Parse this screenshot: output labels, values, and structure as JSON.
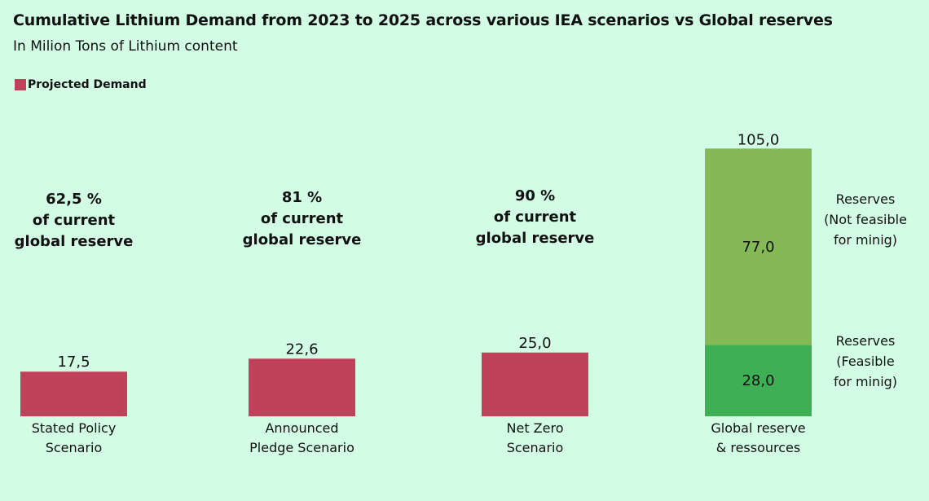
{
  "title": "Cumulative Lithium Demand from 2023 to 2025 across various IEA scenarios vs Global reserves",
  "subtitle": "In Milion Tons of Lithium content",
  "legend": {
    "label": "Projected Demand",
    "color": "#c0415a"
  },
  "colors": {
    "demand": "#c0415a",
    "feasible": "#3faf55",
    "not_feasible": "#84b955"
  },
  "chart_data": {
    "type": "bar",
    "title": "Cumulative Lithium Demand from 2023 to 2025 across various IEA scenarios vs Global reserves",
    "subtitle": "In Milion Tons of Lithium content",
    "xlabel": "",
    "ylabel": "",
    "ylim": [
      0,
      105
    ],
    "categories": [
      [
        "Stated Policy",
        "Scenario"
      ],
      [
        "Announced",
        "Pledge Scenario"
      ],
      [
        "Net Zero",
        "Scenario"
      ],
      [
        "Global reserve",
        "& ressources"
      ]
    ],
    "series": [
      {
        "name": "Projected Demand",
        "values": [
          17.5,
          22.6,
          25.0,
          null
        ],
        "labels": [
          "17,5",
          "22,6",
          "25,0",
          ""
        ]
      },
      {
        "name": "",
        "values": [
          null,
          null,
          null,
          28.0
        ],
        "labels": [
          "",
          "",
          "",
          "28,0"
        ]
      },
      {
        "name": "",
        "values": [
          null,
          null,
          null,
          77.0
        ],
        "labels": [
          "",
          "",
          "",
          "77,0"
        ]
      }
    ],
    "total_label": "105,0",
    "annotations": [
      [
        "62,5 %",
        "of current",
        "global reserve"
      ],
      [
        "81 %",
        "of current",
        "global reserve"
      ],
      [
        "90 %",
        "of current",
        "global reserve"
      ]
    ],
    "side_labels": {
      "not_feasible": [
        "Reserves",
        "(Not feasible",
        "for minig)"
      ],
      "feasible": [
        "Reserves",
        "(Feasible",
        "for minig)"
      ]
    }
  }
}
